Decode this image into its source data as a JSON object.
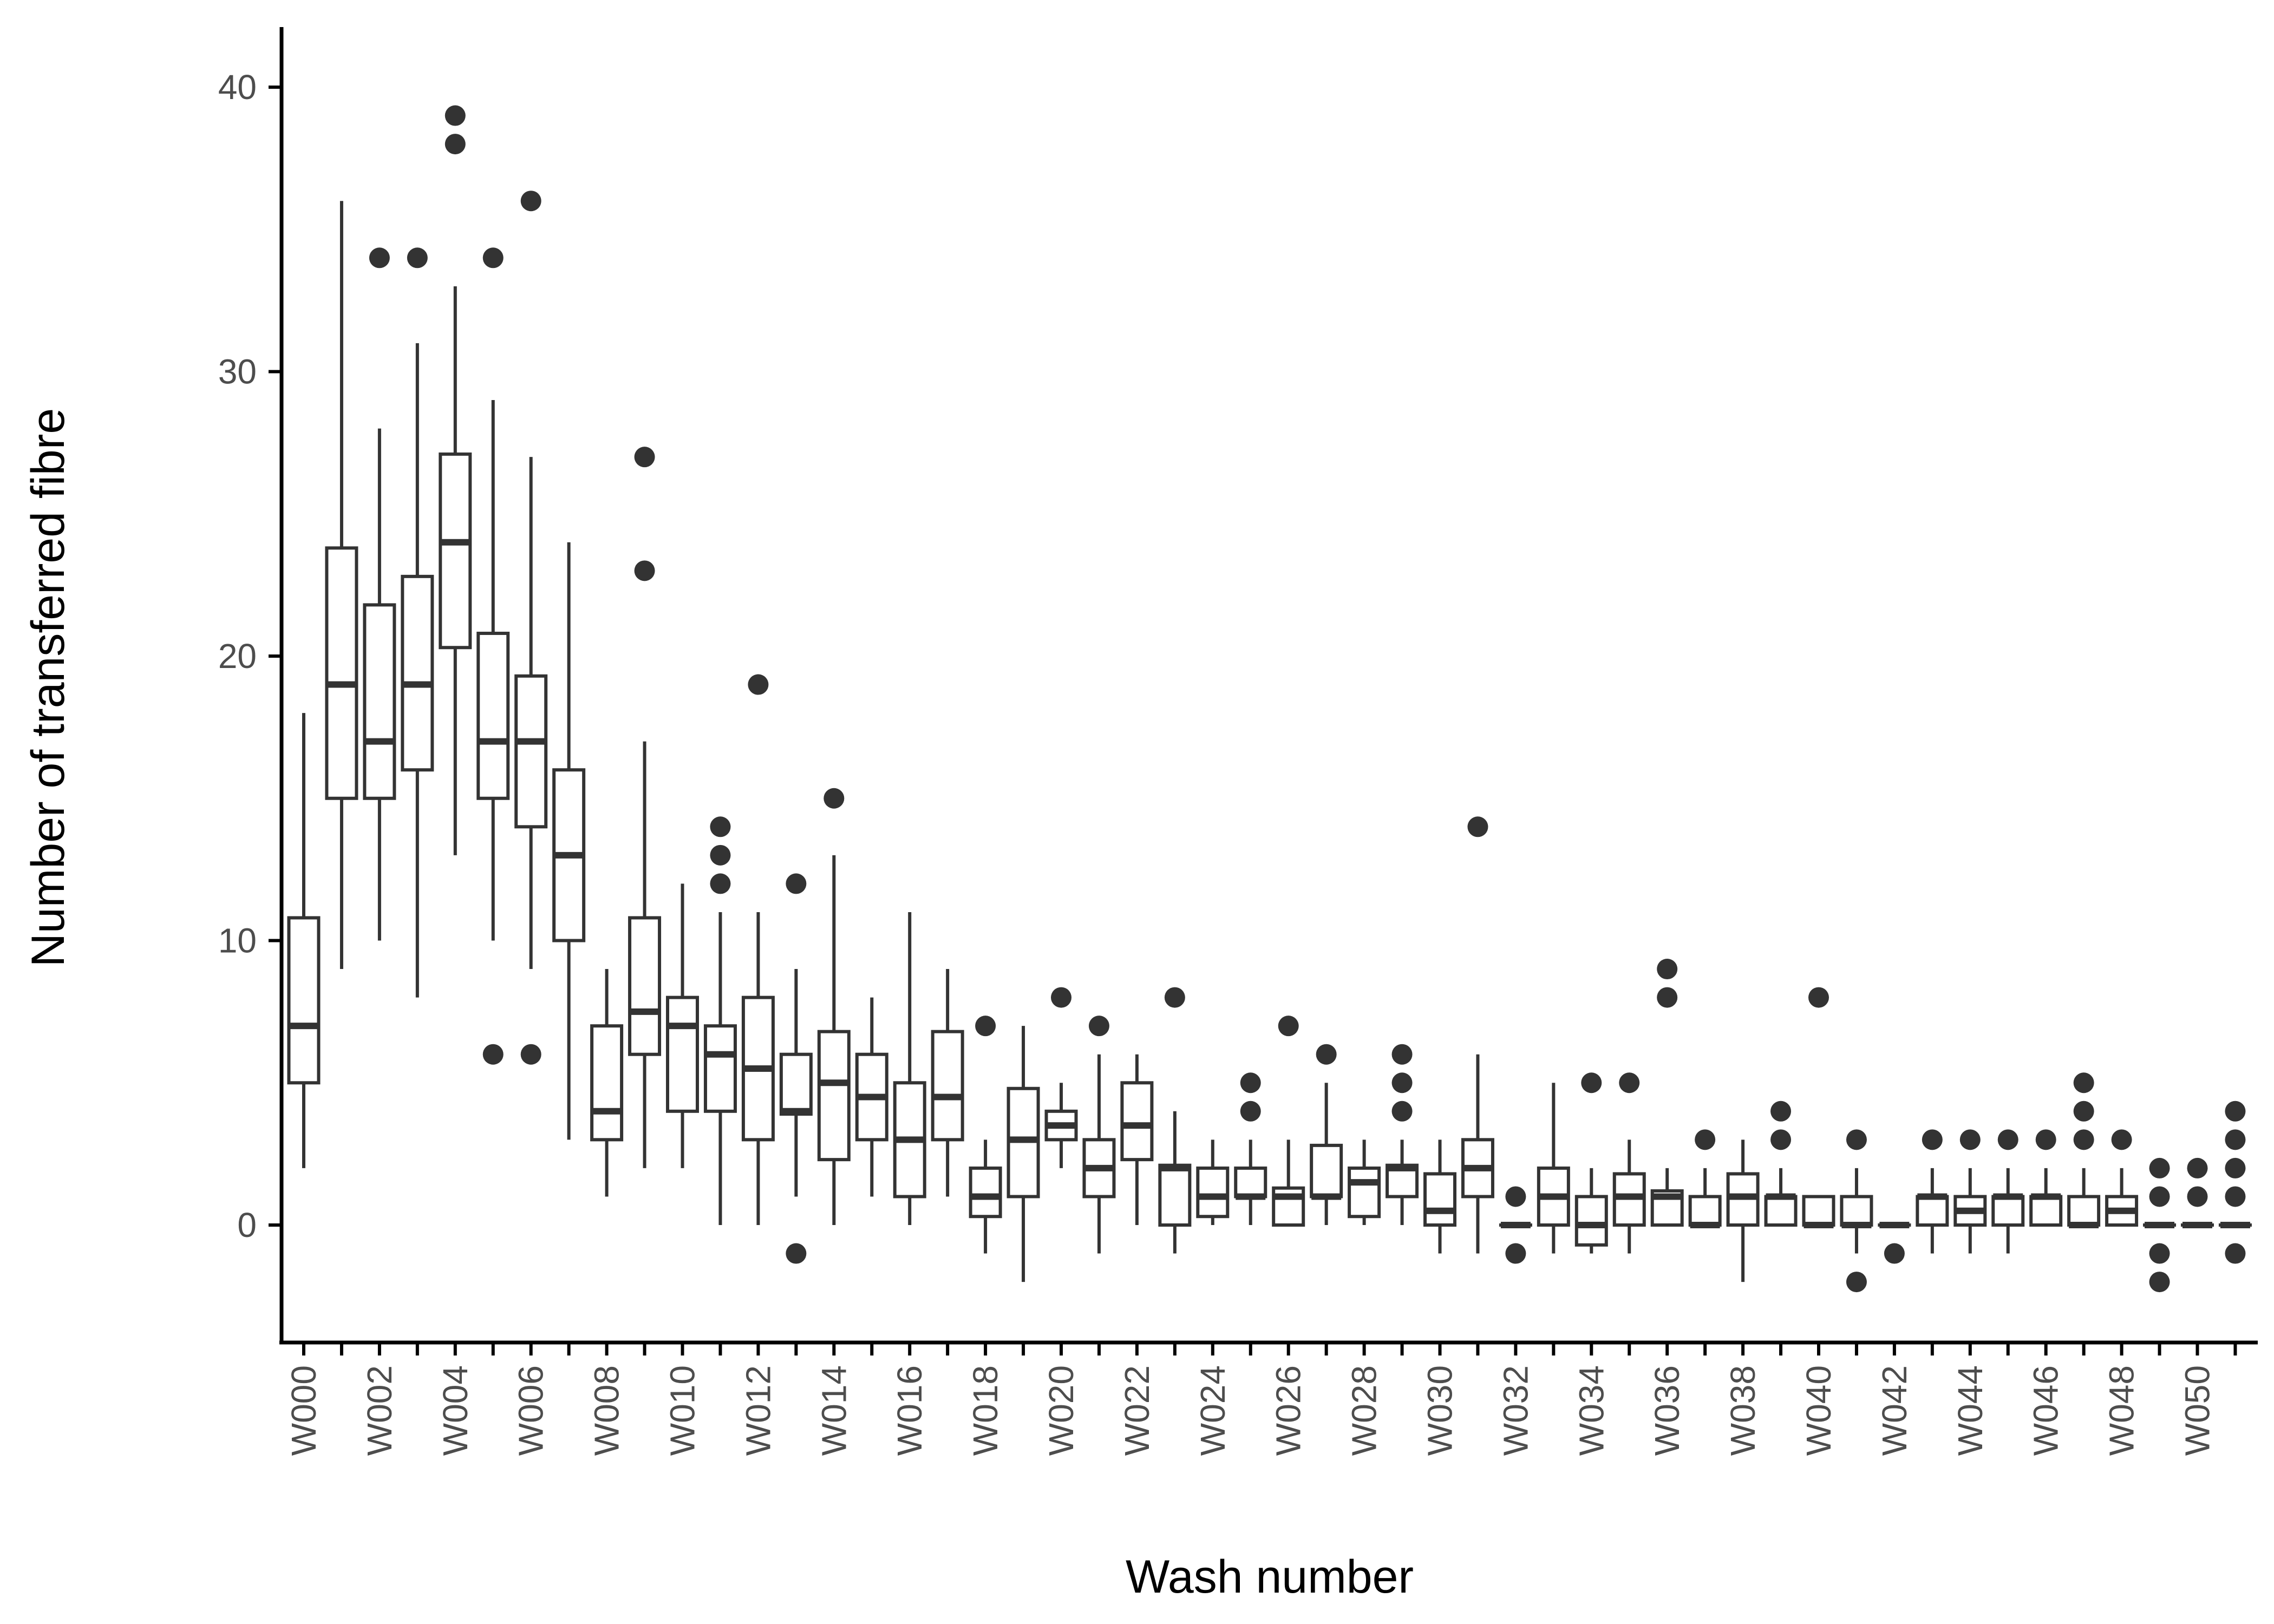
{
  "chart_data": {
    "type": "boxplot",
    "title": "",
    "xlabel": "Wash number",
    "ylabel": "Number of transferred fibre",
    "ylim": [
      -4,
      42
    ],
    "yticks": [
      0,
      10,
      20,
      30,
      40
    ],
    "grid": false,
    "legend": "none",
    "colors": {
      "stroke": "#333333",
      "fill": "#ffffff",
      "axis": "#000000",
      "tick_label": "#4d4d4d"
    },
    "x_tick_labels": [
      "W000",
      "W002",
      "W004",
      "W006",
      "W008",
      "W010",
      "W012",
      "W014",
      "W016",
      "W018",
      "W020",
      "W022",
      "W024",
      "W026",
      "W028",
      "W030",
      "W032",
      "W034",
      "W036",
      "W038",
      "W040",
      "W042",
      "W044",
      "W046",
      "W048",
      "W050"
    ],
    "categories": [
      "W000",
      "W001",
      "W002",
      "W003",
      "W004",
      "W005",
      "W006",
      "W007",
      "W008",
      "W009",
      "W010",
      "W011",
      "W012",
      "W013",
      "W014",
      "W015",
      "W016",
      "W017",
      "W018",
      "W019",
      "W020",
      "W021",
      "W022",
      "W023",
      "W024",
      "W025",
      "W026",
      "W027",
      "W028",
      "W029",
      "W030",
      "W031",
      "W032",
      "W033",
      "W034",
      "W035",
      "W036",
      "W037",
      "W038",
      "W039",
      "W040",
      "W041",
      "W042",
      "W043",
      "W044",
      "W045",
      "W046",
      "W047",
      "W048",
      "W049",
      "W050",
      "W051"
    ],
    "boxes": [
      {
        "min": 2,
        "q1": 5,
        "median": 7,
        "q3": 10.8,
        "max": 18,
        "outliers": []
      },
      {
        "min": 9,
        "q1": 15,
        "median": 19,
        "q3": 23.8,
        "max": 36,
        "outliers": []
      },
      {
        "min": 10,
        "q1": 15,
        "median": 17,
        "q3": 21.8,
        "max": 28,
        "outliers": [
          34
        ]
      },
      {
        "min": 8,
        "q1": 16,
        "median": 19,
        "q3": 22.8,
        "max": 31,
        "outliers": [
          34
        ]
      },
      {
        "min": 13,
        "q1": 20.3,
        "median": 24,
        "q3": 27.1,
        "max": 33,
        "outliers": [
          38,
          39
        ]
      },
      {
        "min": 10,
        "q1": 15,
        "median": 17,
        "q3": 20.8,
        "max": 29,
        "outliers": [
          34,
          6
        ]
      },
      {
        "min": 9,
        "q1": 14,
        "median": 17,
        "q3": 19.3,
        "max": 27,
        "outliers": [
          36,
          6
        ]
      },
      {
        "min": 3,
        "q1": 10,
        "median": 13,
        "q3": 16,
        "max": 24,
        "outliers": []
      },
      {
        "min": 1,
        "q1": 3,
        "median": 4,
        "q3": 7,
        "max": 9,
        "outliers": []
      },
      {
        "min": 2,
        "q1": 6,
        "median": 7.5,
        "q3": 10.8,
        "max": 17,
        "outliers": [
          27,
          23
        ]
      },
      {
        "min": 2,
        "q1": 4,
        "median": 7,
        "q3": 8,
        "max": 12,
        "outliers": []
      },
      {
        "min": 0,
        "q1": 4,
        "median": 6,
        "q3": 7,
        "max": 11,
        "outliers": [
          14,
          13,
          12
        ]
      },
      {
        "min": 0,
        "q1": 3,
        "median": 5.5,
        "q3": 8,
        "max": 11,
        "outliers": [
          19
        ]
      },
      {
        "min": 1,
        "q1": 3.9,
        "median": 4,
        "q3": 6,
        "max": 9,
        "outliers": [
          12,
          -1
        ]
      },
      {
        "min": 0,
        "q1": 2.3,
        "median": 5,
        "q3": 6.8,
        "max": 13,
        "outliers": [
          15
        ]
      },
      {
        "min": 1,
        "q1": 3,
        "median": 4.5,
        "q3": 6,
        "max": 8,
        "outliers": []
      },
      {
        "min": 0,
        "q1": 1,
        "median": 3,
        "q3": 5,
        "max": 11,
        "outliers": []
      },
      {
        "min": 1,
        "q1": 3,
        "median": 4.5,
        "q3": 6.8,
        "max": 9,
        "outliers": []
      },
      {
        "min": -1,
        "q1": 0.3,
        "median": 1,
        "q3": 2,
        "max": 3,
        "outliers": [
          7
        ]
      },
      {
        "min": -2,
        "q1": 1,
        "median": 3,
        "q3": 4.8,
        "max": 7,
        "outliers": []
      },
      {
        "min": 2,
        "q1": 3,
        "median": 3.5,
        "q3": 4,
        "max": 5,
        "outliers": [
          8
        ]
      },
      {
        "min": -1,
        "q1": 1,
        "median": 2,
        "q3": 3,
        "max": 6,
        "outliers": [
          7
        ]
      },
      {
        "min": 0,
        "q1": 2.3,
        "median": 3.5,
        "q3": 5,
        "max": 6,
        "outliers": []
      },
      {
        "min": -1,
        "q1": 0,
        "median": 2,
        "q3": 2.1,
        "max": 4,
        "outliers": [
          8
        ]
      },
      {
        "min": 0,
        "q1": 0.3,
        "median": 1,
        "q3": 2,
        "max": 3,
        "outliers": []
      },
      {
        "min": 0,
        "q1": 1,
        "median": 1,
        "q3": 2,
        "max": 3,
        "outliers": [
          5,
          4
        ]
      },
      {
        "min": 0,
        "q1": 0,
        "median": 1,
        "q3": 1.3,
        "max": 3,
        "outliers": [
          7
        ]
      },
      {
        "min": 0,
        "q1": 1,
        "median": 1,
        "q3": 2.8,
        "max": 5,
        "outliers": [
          6
        ]
      },
      {
        "min": 0,
        "q1": 0.3,
        "median": 1.5,
        "q3": 2,
        "max": 3,
        "outliers": []
      },
      {
        "min": 0,
        "q1": 1,
        "median": 2,
        "q3": 2.1,
        "max": 3,
        "outliers": [
          6,
          5,
          4
        ]
      },
      {
        "min": -1,
        "q1": 0,
        "median": 0.5,
        "q3": 1.8,
        "max": 3,
        "outliers": []
      },
      {
        "min": -1,
        "q1": 1,
        "median": 2,
        "q3": 3,
        "max": 6,
        "outliers": [
          14
        ]
      },
      {
        "min": 0,
        "q1": 0,
        "median": 0,
        "q3": 0,
        "max": 0,
        "outliers": [
          1,
          -1
        ]
      },
      {
        "min": -1,
        "q1": 0,
        "median": 1,
        "q3": 2,
        "max": 5,
        "outliers": []
      },
      {
        "min": -1,
        "q1": -0.7,
        "median": 0,
        "q3": 1,
        "max": 2,
        "outliers": [
          5
        ]
      },
      {
        "min": -1,
        "q1": 0,
        "median": 1,
        "q3": 1.8,
        "max": 3,
        "outliers": [
          5
        ]
      },
      {
        "min": 0,
        "q1": 0,
        "median": 1,
        "q3": 1.2,
        "max": 2,
        "outliers": [
          9,
          8
        ]
      },
      {
        "min": 0,
        "q1": 0,
        "median": 0,
        "q3": 1,
        "max": 2,
        "outliers": [
          3
        ]
      },
      {
        "min": -2,
        "q1": 0,
        "median": 1,
        "q3": 1.8,
        "max": 3,
        "outliers": []
      },
      {
        "min": 0,
        "q1": 0,
        "median": 1,
        "q3": 1,
        "max": 2,
        "outliers": [
          4,
          3
        ]
      },
      {
        "min": 0,
        "q1": 0,
        "median": 0,
        "q3": 1,
        "max": 1,
        "outliers": [
          8
        ]
      },
      {
        "min": -1,
        "q1": 0,
        "median": 0,
        "q3": 1,
        "max": 2,
        "outliers": [
          3,
          -2
        ]
      },
      {
        "min": 0,
        "q1": 0,
        "median": 0,
        "q3": 0,
        "max": 0,
        "outliers": [
          -1
        ]
      },
      {
        "min": -1,
        "q1": 0,
        "median": 1,
        "q3": 1,
        "max": 2,
        "outliers": [
          3
        ]
      },
      {
        "min": -1,
        "q1": 0,
        "median": 0.5,
        "q3": 1,
        "max": 2,
        "outliers": [
          3
        ]
      },
      {
        "min": -1,
        "q1": 0,
        "median": 1,
        "q3": 1,
        "max": 2,
        "outliers": [
          3
        ]
      },
      {
        "min": 0,
        "q1": 0,
        "median": 1,
        "q3": 1,
        "max": 2,
        "outliers": [
          3
        ]
      },
      {
        "min": 0,
        "q1": 0,
        "median": 0,
        "q3": 1,
        "max": 2,
        "outliers": [
          5,
          4,
          3
        ]
      },
      {
        "min": 0,
        "q1": 0,
        "median": 0.5,
        "q3": 1,
        "max": 2,
        "outliers": [
          3
        ]
      },
      {
        "min": 0,
        "q1": 0,
        "median": 0,
        "q3": 0,
        "max": 0,
        "outliers": [
          2,
          1,
          -1,
          -2
        ]
      },
      {
        "min": 0,
        "q1": 0,
        "median": 0,
        "q3": 0,
        "max": 0,
        "outliers": [
          2,
          1
        ]
      },
      {
        "min": 0,
        "q1": 0,
        "median": 0,
        "q3": 0,
        "max": 0,
        "outliers": [
          4,
          3,
          2,
          1,
          -1
        ]
      }
    ]
  }
}
